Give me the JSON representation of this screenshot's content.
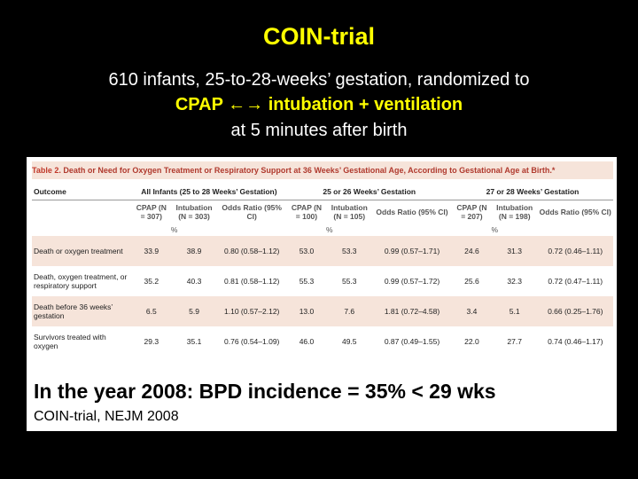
{
  "slide": {
    "title": "COIN-trial",
    "line1": "610 infants, 25-to-28-weeks’ gestation, randomized to",
    "line2_left": "CPAP",
    "line2_arrow": "←→",
    "line2_right": "intubation + ventilation",
    "line3": "at 5 minutes after birth"
  },
  "table": {
    "label": "Table 2.",
    "title": "Death or Need for Oxygen Treatment or Respiratory Support at 36 Weeks’ Gestational Age, According to Gestational Age at Birth.*",
    "outcome_header": "Outcome",
    "groups": [
      "All Infants (25 to 28 Weeks’ Gestation)",
      "25 or 26 Weeks’ Gestation",
      "27 or 28 Weeks’ Gestation"
    ],
    "subheaders": [
      [
        "CPAP (N = 307)",
        "Intubation (N = 303)",
        "Odds Ratio (95% CI)"
      ],
      [
        "CPAP (N = 100)",
        "Intubation (N = 105)",
        "Odds Ratio (95% CI)"
      ],
      [
        "CPAP (N = 207)",
        "Intubation (N = 198)",
        "Odds Ratio (95% CI)"
      ]
    ],
    "pct": "%",
    "rows": [
      {
        "outcome": "Death or oxygen treatment",
        "v": [
          "33.9",
          "38.9",
          "0.80 (0.58–1.12)",
          "53.0",
          "53.3",
          "0.99 (0.57–1.71)",
          "24.6",
          "31.3",
          "0.72 (0.46–1.11)"
        ]
      },
      {
        "outcome": "Death, oxygen treatment, or respiratory support",
        "v": [
          "35.2",
          "40.3",
          "0.81 (0.58–1.12)",
          "55.3",
          "55.3",
          "0.99 (0.57–1.72)",
          "25.6",
          "32.3",
          "0.72 (0.47–1.11)"
        ]
      },
      {
        "outcome": "Death before 36 weeks’ gestation",
        "v": [
          "6.5",
          "5.9",
          "1.10 (0.57–2.12)",
          "13.0",
          "7.6",
          "1.81 (0.72–4.58)",
          "3.4",
          "5.1",
          "0.66 (0.25–1.76)"
        ]
      },
      {
        "outcome": "Survivors treated with oxygen",
        "v": [
          "29.3",
          "35.1",
          "0.76 (0.54–1.09)",
          "46.0",
          "49.5",
          "0.87 (0.49–1.55)",
          "22.0",
          "27.7",
          "0.74 (0.46–1.17)"
        ]
      }
    ]
  },
  "caption": {
    "main": "In the year 2008:  BPD incidence = 35% < 29 wks",
    "source": "COIN-trial, NEJM 2008"
  },
  "colors": {
    "title": "#ffff00",
    "background": "#000000",
    "accent": "#c0392b"
  }
}
